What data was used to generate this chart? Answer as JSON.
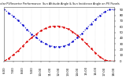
{
  "title": "Solar PV/Inverter Performance  Sun Altitude Angle & Sun Incidence Angle on PV Panels",
  "bg_color": "#ffffff",
  "plot_bg_color": "#ffffff",
  "grid_color": "#cccccc",
  "text_color": "#111111",
  "x_values": [
    6,
    6.5,
    7,
    7.5,
    8,
    8.5,
    9,
    9.5,
    10,
    10.5,
    11,
    11.5,
    12,
    12.5,
    13,
    13.5,
    14,
    14.5,
    15,
    15.5,
    16,
    16.5,
    17,
    17.5,
    18
  ],
  "sun_altitude": [
    0,
    5,
    11,
    18,
    26,
    34,
    41,
    47,
    53,
    57,
    60,
    61,
    61,
    59,
    56,
    51,
    45,
    38,
    30,
    22,
    14,
    7,
    2,
    0,
    0
  ],
  "sun_incidence": [
    90,
    84,
    78,
    71,
    63,
    55,
    47,
    41,
    35,
    30,
    27,
    25,
    25,
    26,
    29,
    34,
    41,
    48,
    57,
    65,
    73,
    80,
    86,
    90,
    90
  ],
  "altitude_color": "#dd0000",
  "incidence_color": "#0000cc",
  "ylim": [
    0,
    95
  ],
  "xlim": [
    6,
    18
  ],
  "x_tick_labels": [
    "6:00",
    "7:00",
    "8:00",
    "9:00",
    "10:00",
    "11:00",
    "12:00",
    "13:00",
    "14:00",
    "15:00",
    "16:00",
    "17:00",
    "18:00"
  ],
  "x_tick_positions": [
    6,
    7,
    8,
    9,
    10,
    11,
    12,
    13,
    14,
    15,
    16,
    17,
    18
  ],
  "yticks_right": [
    0,
    10,
    20,
    30,
    40,
    50,
    60,
    70,
    80,
    90
  ],
  "altitude_label": "Sun Altitude Angle",
  "incidence_label": "Sun Incidence Angle",
  "altitude_linestyle": "--",
  "incidence_linestyle": ":",
  "linewidth": 0.8,
  "markersize": 1.5,
  "title_fontsize": 2.5,
  "tick_fontsize": 2.8
}
